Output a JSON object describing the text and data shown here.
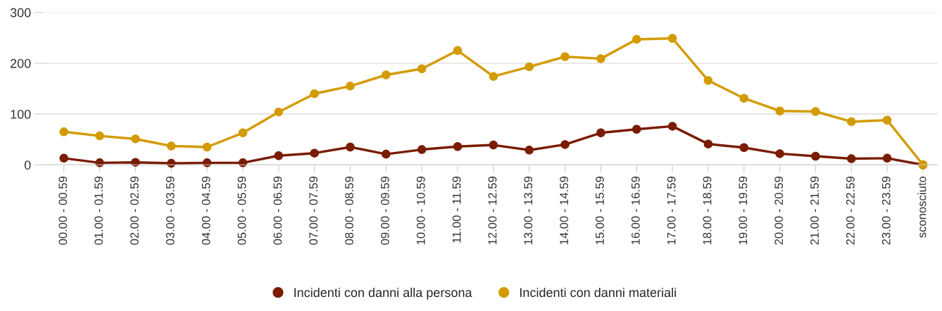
{
  "chart_data": {
    "type": "line",
    "categories": [
      "00.00 - 00.59",
      "01.00 - 01.59",
      "02.00 - 02.59",
      "03.00 - 03.59",
      "04.00 - 04.59",
      "05.00 - 05.59",
      "06.00 - 06.59",
      "07.00 - 07.59",
      "08.00 - 08.59",
      "09.00 - 09.59",
      "10.00 - 10.59",
      "11.00 - 11.59",
      "12.00 - 12.59",
      "13.00 - 13.59",
      "14.00 - 14.59",
      "15.00 - 15.59",
      "16.00 - 16.59",
      "17.00 - 17.59",
      "18.00 - 18.59",
      "19.00 - 19.59",
      "20.00 - 20.59",
      "21.00 - 21.59",
      "22.00 - 22.59",
      "23.00 - 23.59",
      "sconosciuto"
    ],
    "series": [
      {
        "name": "Incidenti con danni alla persona",
        "color": "#7a1c00",
        "values": [
          13,
          4,
          5,
          3,
          4,
          4,
          18,
          23,
          35,
          21,
          30,
          36,
          39,
          29,
          40,
          63,
          70,
          76,
          41,
          34,
          22,
          17,
          12,
          13,
          0
        ]
      },
      {
        "name": "Incidenti con danni materiali",
        "color": "#d39b00",
        "values": [
          65,
          57,
          51,
          37,
          35,
          63,
          104,
          140,
          155,
          177,
          189,
          225,
          174,
          193,
          213,
          209,
          247,
          249,
          166,
          131,
          106,
          105,
          85,
          88,
          0
        ]
      }
    ],
    "ylim": [
      0,
      300
    ],
    "yticks": [
      0,
      100,
      200,
      300
    ],
    "grid": "y",
    "legend": "bottom",
    "marker": "circle",
    "line_style": "solid"
  }
}
